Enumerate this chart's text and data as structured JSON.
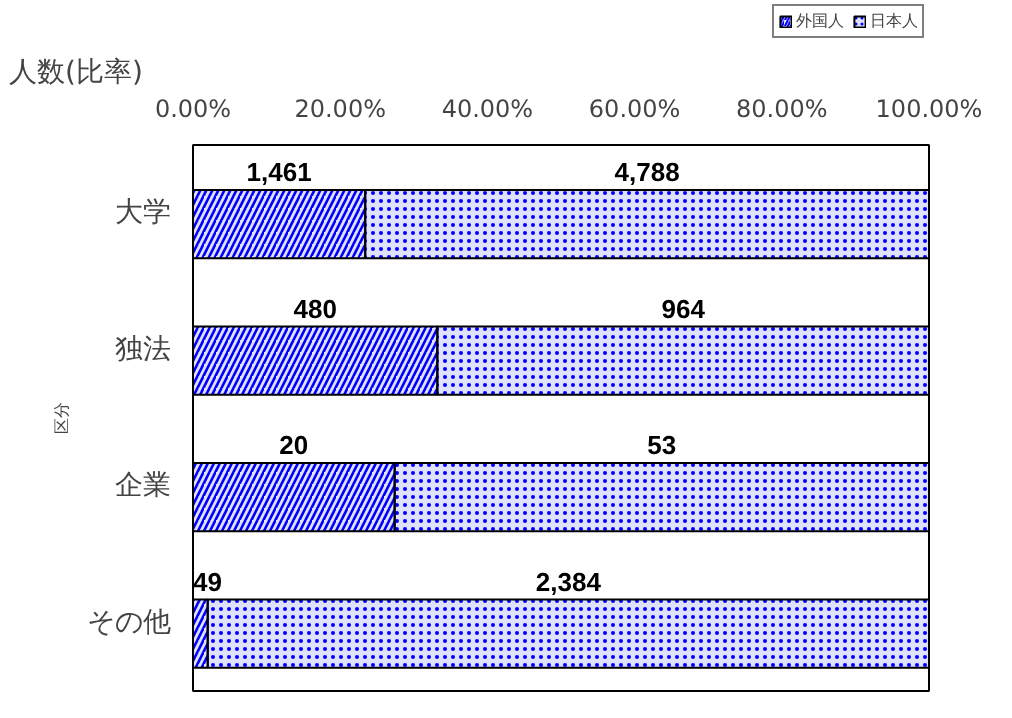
{
  "chart_data": {
    "type": "bar",
    "orientation": "horizontal",
    "stacked": true,
    "xlabel": "人数(比率)",
    "ylabel": "区分",
    "categories": [
      "大学",
      "独法",
      "企業",
      "その他"
    ],
    "series": [
      {
        "name": "外国人",
        "color": "#0000ff",
        "values": [
          23.4,
          33.2,
          27.4,
          2.0
        ]
      },
      {
        "name": "日本人",
        "color": "#0000ff",
        "values": [
          76.6,
          66.8,
          72.6,
          98.0
        ]
      }
    ],
    "annotations": [
      "1,461",
      "480",
      "20",
      "49",
      "4,788",
      "964",
      "53",
      "2,384"
    ],
    "xlim": [
      0,
      100
    ],
    "xticks": [
      {
        "value": 0,
        "label": "0.00%"
      },
      {
        "value": 20,
        "label": "20.00%"
      },
      {
        "value": 40,
        "label": "40.00%"
      },
      {
        "value": 60,
        "label": "60.00%"
      },
      {
        "value": 80,
        "label": "80.00%"
      },
      {
        "value": 100,
        "label": "100.00%"
      }
    ],
    "grid": false,
    "legend": "top right"
  }
}
